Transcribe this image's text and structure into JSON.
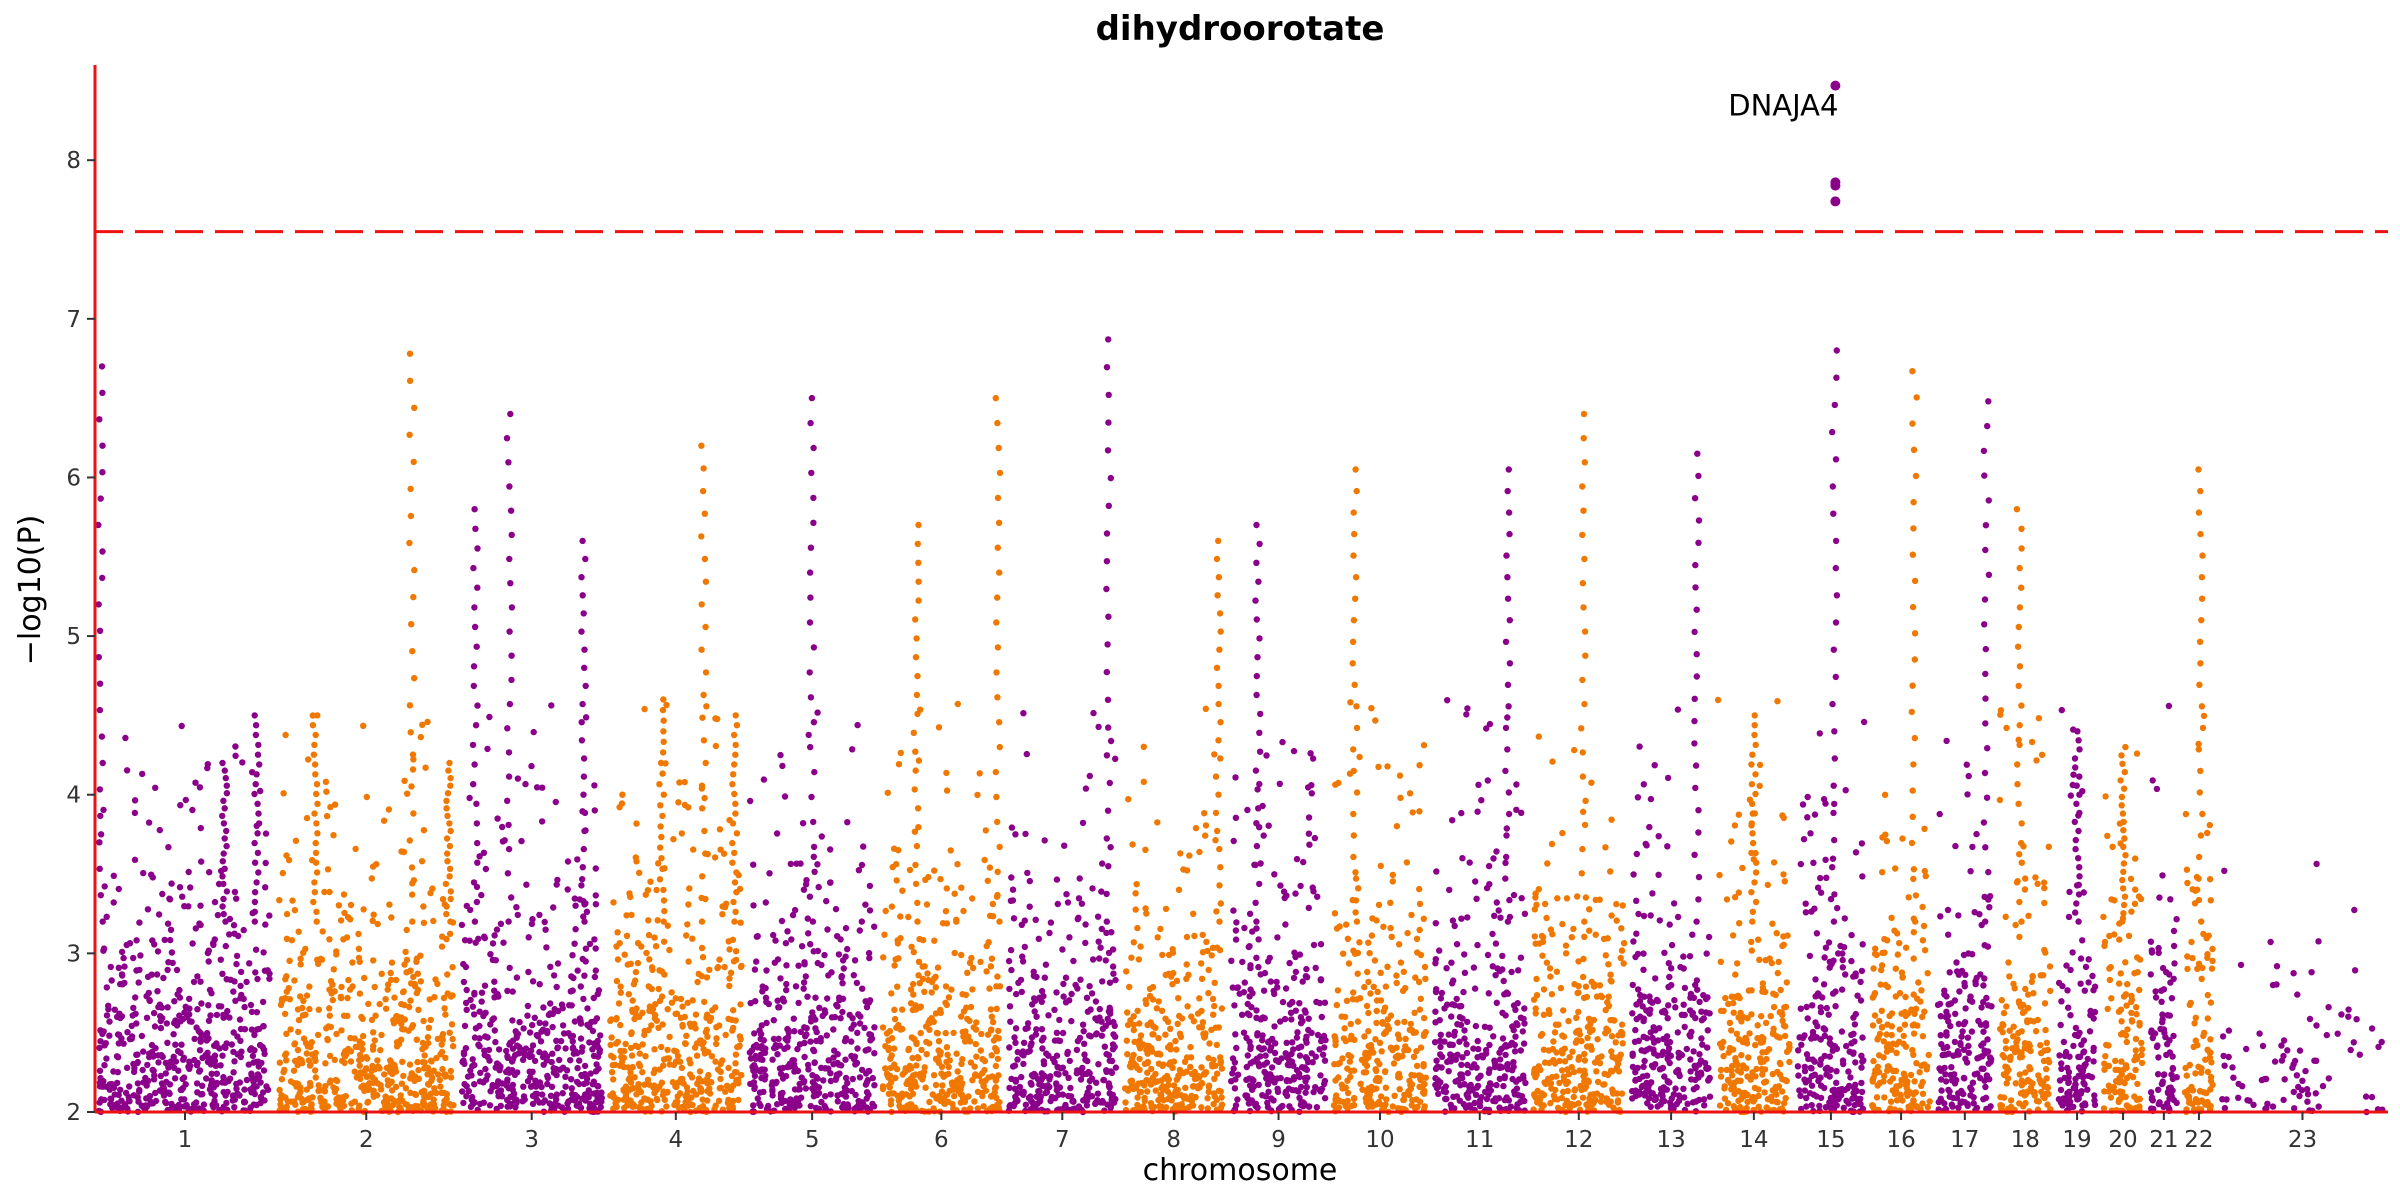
{
  "chart_data": {
    "type": "scatter",
    "title": "dihydroorotate",
    "xlabel": "chromosome",
    "ylabel": "−log10(P)",
    "ylim": [
      2,
      8.6
    ],
    "y_ticks": [
      2,
      3,
      4,
      5,
      6,
      7,
      8
    ],
    "grid": false,
    "legend": "none",
    "significance_threshold": 7.55,
    "colors": {
      "odd": "#8b008b",
      "even": "#f07800",
      "threshold": "#ee1111",
      "axis": "#ee1111"
    },
    "chromosomes": [
      {
        "label": "1",
        "span": [
          0.0,
          0.0785
        ],
        "color": "purple"
      },
      {
        "label": "2",
        "span": [
          0.0785,
          0.1581
        ],
        "color": "orange"
      },
      {
        "label": "3",
        "span": [
          0.1581,
          0.2228
        ],
        "color": "purple"
      },
      {
        "label": "4",
        "span": [
          0.2228,
          0.2838
        ],
        "color": "orange"
      },
      {
        "label": "5",
        "span": [
          0.2838,
          0.3417
        ],
        "color": "purple"
      },
      {
        "label": "6",
        "span": [
          0.3417,
          0.3965
        ],
        "color": "orange"
      },
      {
        "label": "7",
        "span": [
          0.3965,
          0.4472
        ],
        "color": "purple"
      },
      {
        "label": "8",
        "span": [
          0.4472,
          0.4937
        ],
        "color": "orange"
      },
      {
        "label": "9",
        "span": [
          0.4937,
          0.5386
        ],
        "color": "purple"
      },
      {
        "label": "10",
        "span": [
          0.5386,
          0.5822
        ],
        "color": "orange"
      },
      {
        "label": "11",
        "span": [
          0.5822,
          0.6256
        ],
        "color": "purple"
      },
      {
        "label": "12",
        "span": [
          0.6256,
          0.6686
        ],
        "color": "orange"
      },
      {
        "label": "13",
        "span": [
          0.6686,
          0.7061
        ],
        "color": "purple"
      },
      {
        "label": "14",
        "span": [
          0.7061,
          0.7408
        ],
        "color": "orange"
      },
      {
        "label": "15",
        "span": [
          0.7408,
          0.7733
        ],
        "color": "purple"
      },
      {
        "label": "16",
        "span": [
          0.7733,
          0.802
        ],
        "color": "orange"
      },
      {
        "label": "17",
        "span": [
          0.802,
          0.8289
        ],
        "color": "purple"
      },
      {
        "label": "18",
        "span": [
          0.8289,
          0.8547
        ],
        "color": "orange"
      },
      {
        "label": "19",
        "span": [
          0.8547,
          0.8741
        ],
        "color": "purple"
      },
      {
        "label": "20",
        "span": [
          0.8741,
          0.8948
        ],
        "color": "orange"
      },
      {
        "label": "21",
        "span": [
          0.8948,
          0.9097
        ],
        "color": "purple"
      },
      {
        "label": "22",
        "span": [
          0.9097,
          0.9254
        ],
        "color": "orange"
      },
      {
        "label": "23",
        "span": [
          0.9254,
          1.0
        ],
        "color": "purple"
      }
    ],
    "peaks": [
      {
        "chr": "1",
        "pos": 0.03,
        "max": 6.7
      },
      {
        "chr": "1",
        "pos": 0.72,
        "max": 4.2
      },
      {
        "chr": "1",
        "pos": 0.9,
        "max": 4.5
      },
      {
        "chr": "2",
        "pos": 0.22,
        "max": 4.5
      },
      {
        "chr": "2",
        "pos": 0.75,
        "max": 6.78
      },
      {
        "chr": "2",
        "pos": 0.95,
        "max": 4.2
      },
      {
        "chr": "3",
        "pos": 0.12,
        "max": 5.8
      },
      {
        "chr": "3",
        "pos": 0.35,
        "max": 6.4
      },
      {
        "chr": "3",
        "pos": 0.85,
        "max": 5.6
      },
      {
        "chr": "4",
        "pos": 0.4,
        "max": 4.6
      },
      {
        "chr": "4",
        "pos": 0.7,
        "max": 6.2
      },
      {
        "chr": "4",
        "pos": 0.92,
        "max": 4.5
      },
      {
        "chr": "5",
        "pos": 0.5,
        "max": 6.5
      },
      {
        "chr": "6",
        "pos": 0.3,
        "max": 5.7
      },
      {
        "chr": "6",
        "pos": 0.95,
        "max": 6.5
      },
      {
        "chr": "7",
        "pos": 0.9,
        "max": 6.87
      },
      {
        "chr": "8",
        "pos": 0.92,
        "max": 5.6
      },
      {
        "chr": "9",
        "pos": 0.3,
        "max": 5.7
      },
      {
        "chr": "10",
        "pos": 0.25,
        "max": 6.05
      },
      {
        "chr": "11",
        "pos": 0.78,
        "max": 6.05
      },
      {
        "chr": "12",
        "pos": 0.55,
        "max": 6.4
      },
      {
        "chr": "13",
        "pos": 0.8,
        "max": 6.15
      },
      {
        "chr": "14",
        "pos": 0.5,
        "max": 4.5
      },
      {
        "chr": "15",
        "pos": 0.55,
        "max": 6.8
      },
      {
        "chr": "16",
        "pos": 0.7,
        "max": 6.67
      },
      {
        "chr": "17",
        "pos": 0.85,
        "max": 6.48
      },
      {
        "chr": "18",
        "pos": 0.4,
        "max": 5.8
      },
      {
        "chr": "19",
        "pos": 0.5,
        "max": 4.4
      },
      {
        "chr": "20",
        "pos": 0.5,
        "max": 4.3
      },
      {
        "chr": "22",
        "pos": 0.55,
        "max": 6.05
      }
    ],
    "significant_points": [
      {
        "chr": "15",
        "pos": 0.56,
        "y": 8.47
      },
      {
        "chr": "15",
        "pos": 0.56,
        "y": 7.86
      },
      {
        "chr": "15",
        "pos": 0.56,
        "y": 7.84
      },
      {
        "chr": "15",
        "pos": 0.56,
        "y": 7.74
      }
    ],
    "annotations": [
      {
        "label": "DNAJA4",
        "chr": "15",
        "pos": 0.56,
        "y": 8.47
      }
    ]
  }
}
